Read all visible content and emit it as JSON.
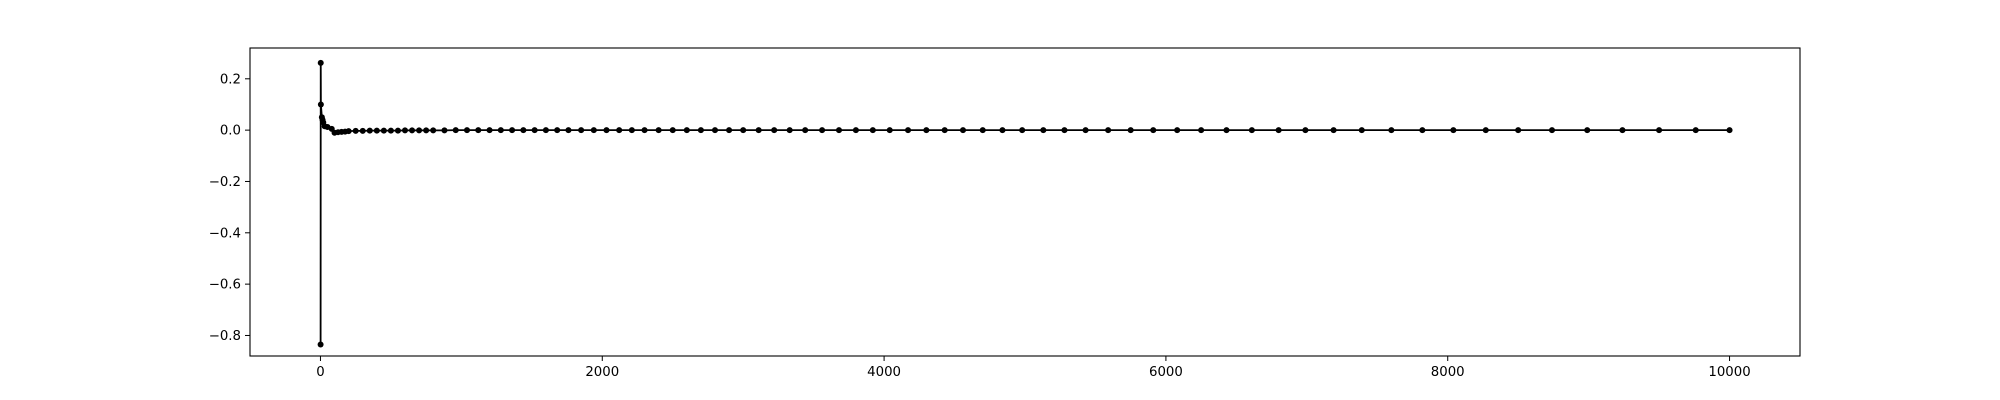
{
  "chart_data": {
    "type": "line",
    "title": "",
    "xlabel": "",
    "ylabel": "",
    "xlim": [
      -500,
      10500
    ],
    "ylim": [
      -0.88,
      0.32
    ],
    "x_ticks": [
      0,
      2000,
      4000,
      6000,
      8000,
      10000
    ],
    "x_tick_labels": [
      "0",
      "2000",
      "4000",
      "6000",
      "8000",
      "10000"
    ],
    "y_ticks": [
      0.2,
      0.0,
      -0.2,
      -0.4,
      -0.6,
      -0.8
    ],
    "y_tick_labels": [
      "0.2",
      "0.0",
      "−0.2",
      "−0.4",
      "−0.6",
      "−0.8"
    ],
    "grid": false,
    "series": [
      {
        "color": "#000000",
        "marker": "circle",
        "x": [
          1,
          2,
          3,
          10,
          15,
          20,
          30,
          50,
          80,
          100,
          125,
          150,
          175,
          200,
          250,
          300,
          350,
          400,
          450,
          500,
          550,
          600,
          650,
          700,
          750,
          800,
          880,
          960,
          1040,
          1120,
          1200,
          1280,
          1360,
          1440,
          1520,
          1600,
          1680,
          1760,
          1850,
          1940,
          2030,
          2120,
          2210,
          2300,
          2400,
          2500,
          2600,
          2700,
          2800,
          2900,
          3000,
          3110,
          3220,
          3330,
          3440,
          3560,
          3680,
          3800,
          3920,
          4040,
          4170,
          4300,
          4430,
          4560,
          4700,
          4840,
          4980,
          5130,
          5280,
          5430,
          5590,
          5750,
          5910,
          6080,
          6250,
          6430,
          6610,
          6800,
          6990,
          7190,
          7390,
          7600,
          7820,
          8040,
          8270,
          8500,
          8740,
          8990,
          9240,
          9500,
          9760,
          10000
        ],
        "y": [
          -0.835,
          0.262,
          0.1,
          0.05,
          0.04,
          0.03,
          0.015,
          0.012,
          0.005,
          -0.01,
          -0.008,
          -0.007,
          -0.006,
          -0.004,
          -0.003,
          -0.003,
          -0.002,
          -0.002,
          -0.002,
          -0.002,
          -0.002,
          -0.001,
          -0.001,
          -0.001,
          -0.001,
          -0.001,
          -0.001,
          0.0,
          0.0,
          0.0,
          0.0,
          0.0,
          0.0,
          0.0,
          0.0,
          0.0,
          0.0,
          0.0,
          0.0,
          0.0,
          0.0,
          0.0,
          0.0,
          0.0,
          0.0,
          0.0,
          0.0,
          0.0,
          0.0,
          0.0,
          0.0,
          0.0,
          0.0,
          0.0,
          0.0,
          0.0,
          0.0,
          0.0,
          0.0,
          0.0,
          0.0,
          0.0,
          0.0,
          0.0,
          0.0,
          0.0,
          0.0,
          0.0,
          0.0,
          0.0,
          0.0,
          0.0,
          0.0,
          0.0,
          0.0,
          0.0,
          0.0,
          0.0,
          0.0,
          0.0,
          0.0,
          0.0,
          0.0,
          0.0,
          0.0,
          0.0,
          0.0,
          0.0,
          0.0,
          0.0,
          0.0,
          0.0
        ]
      }
    ]
  }
}
